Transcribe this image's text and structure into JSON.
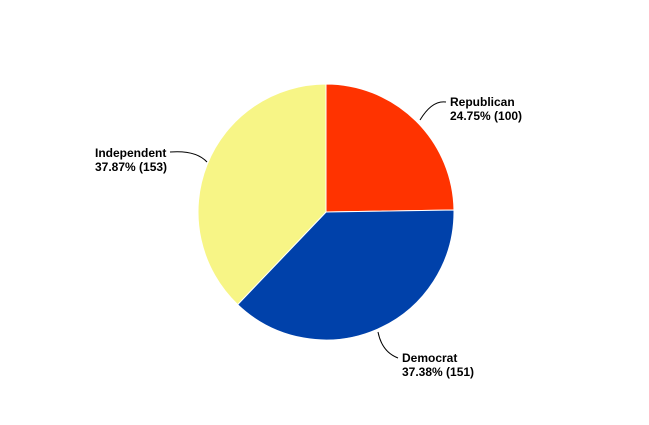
{
  "chart_data": {
    "type": "pie",
    "slices": [
      {
        "name": "Republican",
        "value": 100,
        "percent_label": "24.75% (100)",
        "color": "#ff3300"
      },
      {
        "name": "Democrat",
        "value": 151,
        "percent_label": "37.38% (151)",
        "color": "#0041aa"
      },
      {
        "name": "Independent",
        "value": 153,
        "percent_label": "37.87% (153)",
        "color": "#f7f586"
      }
    ],
    "start_angle_deg": 0,
    "direction": "clockwise"
  }
}
